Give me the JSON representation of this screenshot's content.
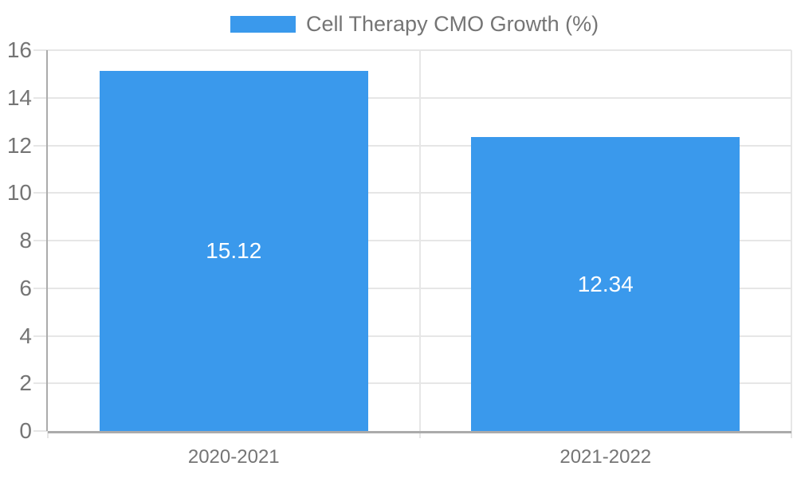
{
  "chart_data": {
    "type": "bar",
    "categories": [
      "2020-2021",
      "2021-2022"
    ],
    "series": [
      {
        "name": "Cell Therapy CMO Growth (%)",
        "values": [
          15.12,
          12.34
        ]
      }
    ],
    "value_labels": [
      "15.12",
      "12.34"
    ],
    "legend": {
      "position": "top",
      "label": "Cell Therapy CMO Growth (%)"
    },
    "xlabel": "",
    "ylabel": "",
    "ylim": [
      0,
      16
    ],
    "yticks": [
      0,
      2,
      4,
      6,
      8,
      10,
      12,
      14,
      16
    ],
    "grid": true,
    "colors": {
      "bar": "#3a99ec",
      "grid": "#e6e6e6",
      "axis": "#ababab",
      "axis_text": "#757575",
      "value_label": "#ffffff",
      "background": "#ffffff"
    }
  }
}
